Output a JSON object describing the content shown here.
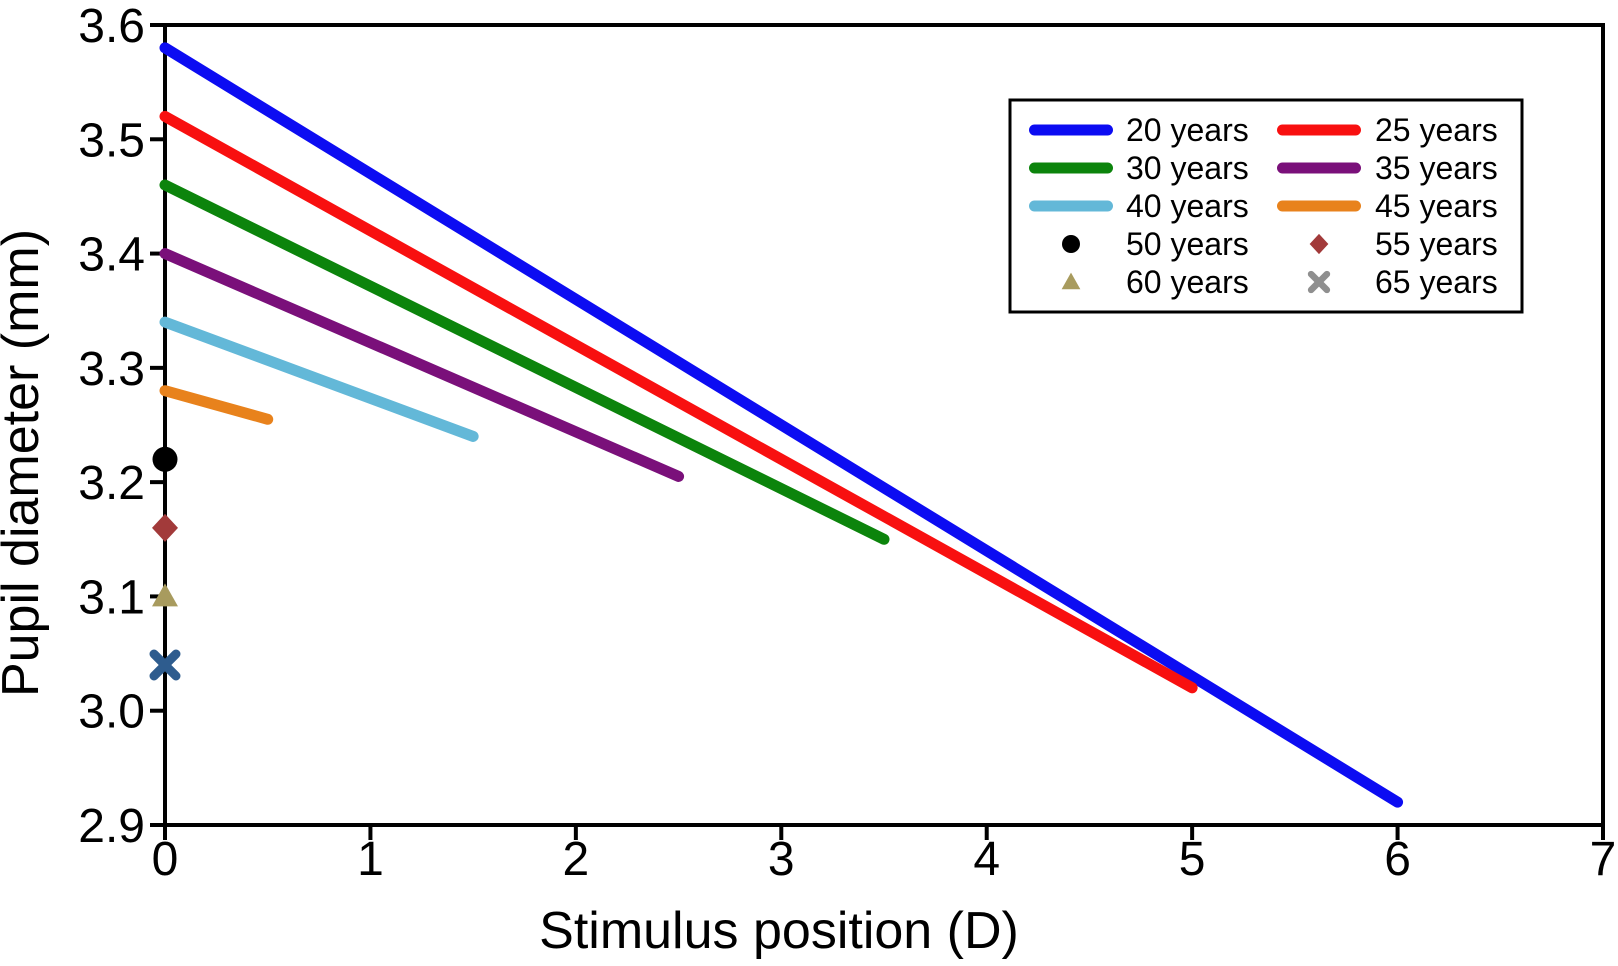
{
  "figure": {
    "background": "#ffffff",
    "frame_color": "#000000",
    "text_color": "#000000"
  },
  "chart_data": {
    "type": "line",
    "title": "",
    "xlabel": "Stimulus position (D)",
    "ylabel": "Pupil diameter (mm)",
    "xlim": [
      0,
      7
    ],
    "ylim": [
      2.9,
      3.6
    ],
    "xticks": [
      0,
      1,
      2,
      3,
      4,
      5,
      6,
      7
    ],
    "xtick_labels": [
      "0",
      "1",
      "2",
      "3",
      "4",
      "5",
      "6",
      "7"
    ],
    "yticks": [
      2.9,
      3.0,
      3.1,
      3.2,
      3.3,
      3.4,
      3.5,
      3.6
    ],
    "ytick_labels": [
      "2.9",
      "3.0",
      "3.1",
      "3.2",
      "3.3",
      "3.4",
      "3.5",
      "3.6"
    ],
    "grid": false,
    "legend_position": "upper right",
    "series": [
      {
        "name": "20 years",
        "kind": "line",
        "color": "#0c0cf2",
        "x": [
          0,
          6
        ],
        "y": [
          3.58,
          2.92
        ]
      },
      {
        "name": "25 years",
        "kind": "line",
        "color": "#f81010",
        "x": [
          0,
          5
        ],
        "y": [
          3.52,
          3.02
        ]
      },
      {
        "name": "30 years",
        "kind": "line",
        "color": "#0c840c",
        "x": [
          0,
          3.5
        ],
        "y": [
          3.46,
          3.15
        ]
      },
      {
        "name": "35 years",
        "kind": "line",
        "color": "#7a107a",
        "x": [
          0,
          2.5
        ],
        "y": [
          3.4,
          3.205
        ]
      },
      {
        "name": "40 years",
        "kind": "line",
        "color": "#63b8d8",
        "x": [
          0,
          1.5
        ],
        "y": [
          3.34,
          3.24
        ]
      },
      {
        "name": "45 years",
        "kind": "line",
        "color": "#e8821c",
        "x": [
          0,
          0.5
        ],
        "y": [
          3.28,
          3.255
        ]
      },
      {
        "name": "50 years",
        "kind": "point",
        "marker": "circle",
        "color": "#000000",
        "x": [
          0
        ],
        "y": [
          3.22
        ]
      },
      {
        "name": "55 years",
        "kind": "point",
        "marker": "diamond",
        "color": "#a23a3a",
        "x": [
          0
        ],
        "y": [
          3.16
        ]
      },
      {
        "name": "60 years",
        "kind": "point",
        "marker": "triangle",
        "color": "#a89b5e",
        "x": [
          0
        ],
        "y": [
          3.1
        ]
      },
      {
        "name": "65 years",
        "kind": "point",
        "marker": "x",
        "color": "#2e5c8e",
        "legend_color": "#8f8f8f",
        "x": [
          0
        ],
        "y": [
          3.04
        ]
      }
    ]
  }
}
